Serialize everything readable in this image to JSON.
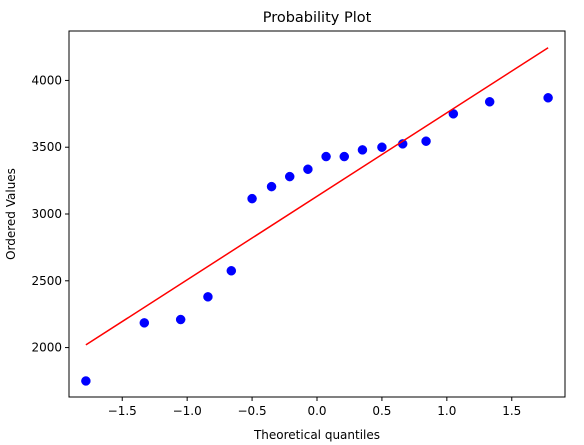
{
  "chart_data": {
    "type": "scatter",
    "title": "Probability Plot",
    "xlabel": "Theoretical quantiles",
    "ylabel": "Ordered Values",
    "xlim": [
      -1.91,
      1.91
    ],
    "ylim": [
      1630,
      4370
    ],
    "xticks": [
      -1.5,
      -1.0,
      -0.5,
      0.0,
      0.5,
      1.0,
      1.5
    ],
    "xtick_labels": [
      "−1.5",
      "−1.0",
      "−0.5",
      "0.0",
      "0.5",
      "1.0",
      "1.5"
    ],
    "yticks": [
      2000,
      2500,
      3000,
      3500,
      4000
    ],
    "ytick_labels": [
      "2000",
      "2500",
      "3000",
      "3500",
      "4000"
    ],
    "grid": false,
    "legend": "none",
    "colors": {
      "points": "#0000ff",
      "fit_line": "#ff0000",
      "axes": "#000000"
    },
    "series": [
      {
        "kind": "points",
        "x": [
          -1.78,
          -1.33,
          -1.05,
          -0.84,
          -0.66,
          -0.5,
          -0.35,
          -0.21,
          -0.07,
          0.07,
          0.21,
          0.35,
          0.5,
          0.66,
          0.84,
          1.05,
          1.33,
          1.78
        ],
        "y": [
          1750,
          2185,
          2210,
          2380,
          2575,
          3115,
          3205,
          3280,
          3335,
          3430,
          3430,
          3480,
          3500,
          3525,
          3545,
          3750,
          3840,
          3870
        ]
      },
      {
        "kind": "fit_line",
        "x": [
          -1.78,
          1.78
        ],
        "y": [
          2020,
          4245
        ]
      }
    ]
  }
}
